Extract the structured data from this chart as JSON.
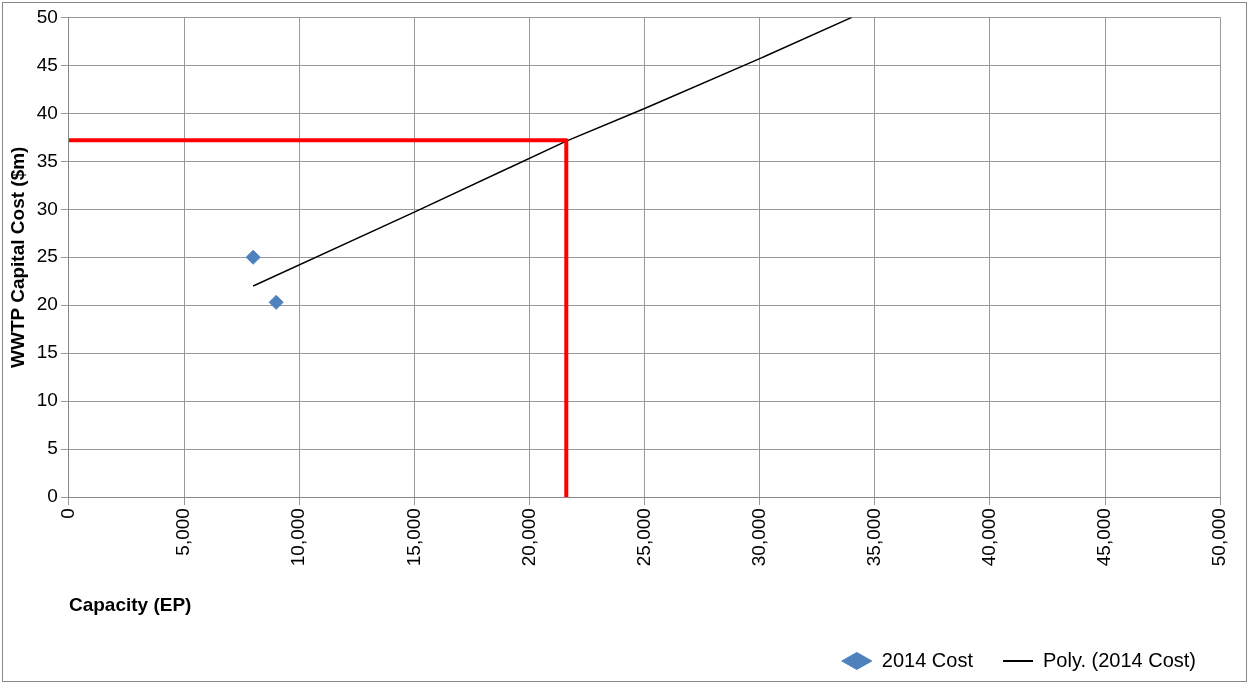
{
  "chart_data": {
    "type": "scatter",
    "xlabel": "Capacity (EP)",
    "ylabel": "WWTP Capital Cost ($m)",
    "xlim": [
      0,
      50000
    ],
    "xticks": [
      {
        "value": 0,
        "label": "0"
      },
      {
        "value": 5000,
        "label": "5,000"
      },
      {
        "value": 10000,
        "label": "10,000"
      },
      {
        "value": 15000,
        "label": "15,000"
      },
      {
        "value": 20000,
        "label": "20,000"
      },
      {
        "value": 25000,
        "label": "25,000"
      },
      {
        "value": 30000,
        "label": "30,000"
      },
      {
        "value": 35000,
        "label": "35,000"
      },
      {
        "value": 40000,
        "label": "40,000"
      },
      {
        "value": 45000,
        "label": "45,000"
      },
      {
        "value": 50000,
        "label": "50,000"
      }
    ],
    "ylim": [
      0,
      50
    ],
    "yticks": [
      0,
      5,
      10,
      15,
      20,
      25,
      30,
      35,
      40,
      45,
      50
    ],
    "grid": true,
    "legend": "bottom right",
    "marker": "diamond",
    "series": [
      {
        "name": "2014 Cost",
        "color": "#4f81bd",
        "x": [
          8000,
          9000
        ],
        "values": [
          25,
          20.3
        ]
      },
      {
        "name": "Poly. (2014 Cost)",
        "type": "line",
        "color": "#000000",
        "marker": "none",
        "x": [
          8000,
          15000,
          21600,
          25000,
          30000,
          34000
        ],
        "values": [
          22,
          29.7,
          37.1,
          40.5,
          45.7,
          50
        ]
      },
      {
        "type": "line",
        "color": "#ff0000",
        "marker": "none",
        "x": [
          0,
          21600,
          21600
        ],
        "values": [
          37.2,
          37.2,
          0
        ]
      }
    ]
  }
}
